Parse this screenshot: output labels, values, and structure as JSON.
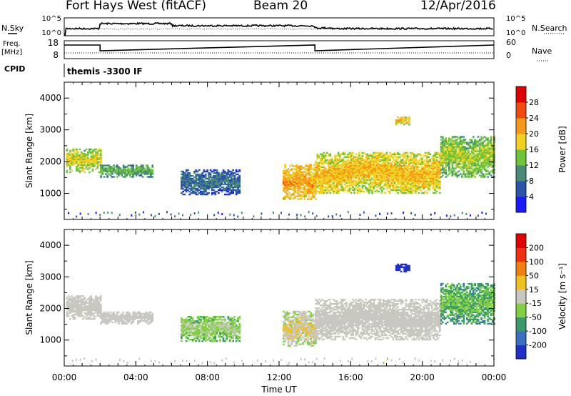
{
  "header": {
    "station": "Fort Hays West (fitACF)",
    "beam": "Beam 20",
    "date": "12/Apr/2016"
  },
  "strip_labels": {
    "nsky": "N.Sky",
    "nsearch": "N.Search",
    "freq_line1": "Freq.",
    "freq_line2": "[MHz]",
    "nave": "Nave",
    "cpid": "CPID",
    "cpid_value": "themis -3300 IF",
    "noise_ticks_left": [
      "10^5",
      "10^0"
    ],
    "noise_ticks_right": [
      "10^5",
      "10^0"
    ],
    "freq_ticks_left": [
      "18",
      "8"
    ],
    "nave_ticks_right": [
      "60",
      "0"
    ]
  },
  "axes": {
    "xlabel": "Time UT",
    "ylabel": "Slant Range [km]",
    "xticks": [
      "00:00",
      "04:00",
      "08:00",
      "12:00",
      "16:00",
      "20:00",
      "00:00"
    ],
    "yticks": [
      "1000",
      "2000",
      "3000",
      "4000"
    ]
  },
  "power_scale": {
    "label": "Power [dB]",
    "ticks": [
      "4",
      "8",
      "12",
      "16",
      "20",
      "24",
      "28"
    ],
    "colors": [
      "#1a1aff",
      "#2a55a8",
      "#4a8a78",
      "#6fc43a",
      "#f0d020",
      "#f59a18",
      "#f04a10",
      "#e00000"
    ]
  },
  "velocity_scale": {
    "label": "Velocity [m s⁻¹]",
    "ticks": [
      "200",
      "100",
      "50",
      "15",
      "-15",
      "-50",
      "-100",
      "-200"
    ],
    "colors": [
      "#2030c8",
      "#3a70c0",
      "#3a9a6a",
      "#80d040",
      "#c8c8c0",
      "#f0c020",
      "#f08010",
      "#f03010",
      "#e00000"
    ]
  },
  "chart_data": [
    {
      "type": "heatmap",
      "title": "Power",
      "xlabel": "Time UT",
      "ylabel": "Slant Range [km]",
      "xlim": [
        0,
        24
      ],
      "ylim": [
        180,
        4500
      ],
      "colorbar": {
        "label": "Power [dB]",
        "range": [
          0,
          32
        ],
        "ticks": [
          4,
          8,
          12,
          16,
          20,
          24,
          28
        ]
      },
      "regions": [
        {
          "t0": 0.1,
          "t1": 2.0,
          "r0": 1650,
          "r1": 2400,
          "level": 18
        },
        {
          "t0": 2.0,
          "t1": 4.9,
          "r0": 1500,
          "r1": 1900,
          "level": 13
        },
        {
          "t0": 6.5,
          "t1": 9.8,
          "r0": 950,
          "r1": 1750,
          "level": 9
        },
        {
          "t0": 12.2,
          "t1": 14.0,
          "r0": 800,
          "r1": 1900,
          "level": 22
        },
        {
          "t0": 14.0,
          "t1": 21.0,
          "r0": 1000,
          "r1": 2300,
          "level": 20
        },
        {
          "t0": 18.5,
          "t1": 19.3,
          "r0": 3150,
          "r1": 3400,
          "level": 20
        },
        {
          "t0": 21.0,
          "t1": 24.0,
          "r0": 1500,
          "r1": 2800,
          "level": 16
        }
      ]
    },
    {
      "type": "heatmap",
      "title": "Velocity",
      "xlabel": "Time UT",
      "ylabel": "Slant Range [km]",
      "xlim": [
        0,
        24
      ],
      "ylim": [
        180,
        4500
      ],
      "colorbar": {
        "label": "Velocity [m s-1]",
        "range": [
          -250,
          250
        ],
        "ticks": [
          -200,
          -100,
          -50,
          -15,
          15,
          50,
          100,
          200
        ]
      },
      "regions": [
        {
          "t0": 0.1,
          "t1": 2.0,
          "r0": 1650,
          "r1": 2400,
          "level": 0
        },
        {
          "t0": 2.0,
          "t1": 4.9,
          "r0": 1500,
          "r1": 1900,
          "level": 0
        },
        {
          "t0": 6.5,
          "t1": 9.8,
          "r0": 950,
          "r1": 1750,
          "level": -20
        },
        {
          "t0": 12.2,
          "t1": 14.0,
          "r0": 800,
          "r1": 1900,
          "level": 30
        },
        {
          "t0": 14.0,
          "t1": 21.0,
          "r0": 1000,
          "r1": 2300,
          "level": 0
        },
        {
          "t0": 18.5,
          "t1": 19.3,
          "r0": 3150,
          "r1": 3400,
          "level": -250
        },
        {
          "t0": 21.0,
          "t1": 24.0,
          "r0": 1500,
          "r1": 2800,
          "level": -60
        }
      ]
    }
  ]
}
